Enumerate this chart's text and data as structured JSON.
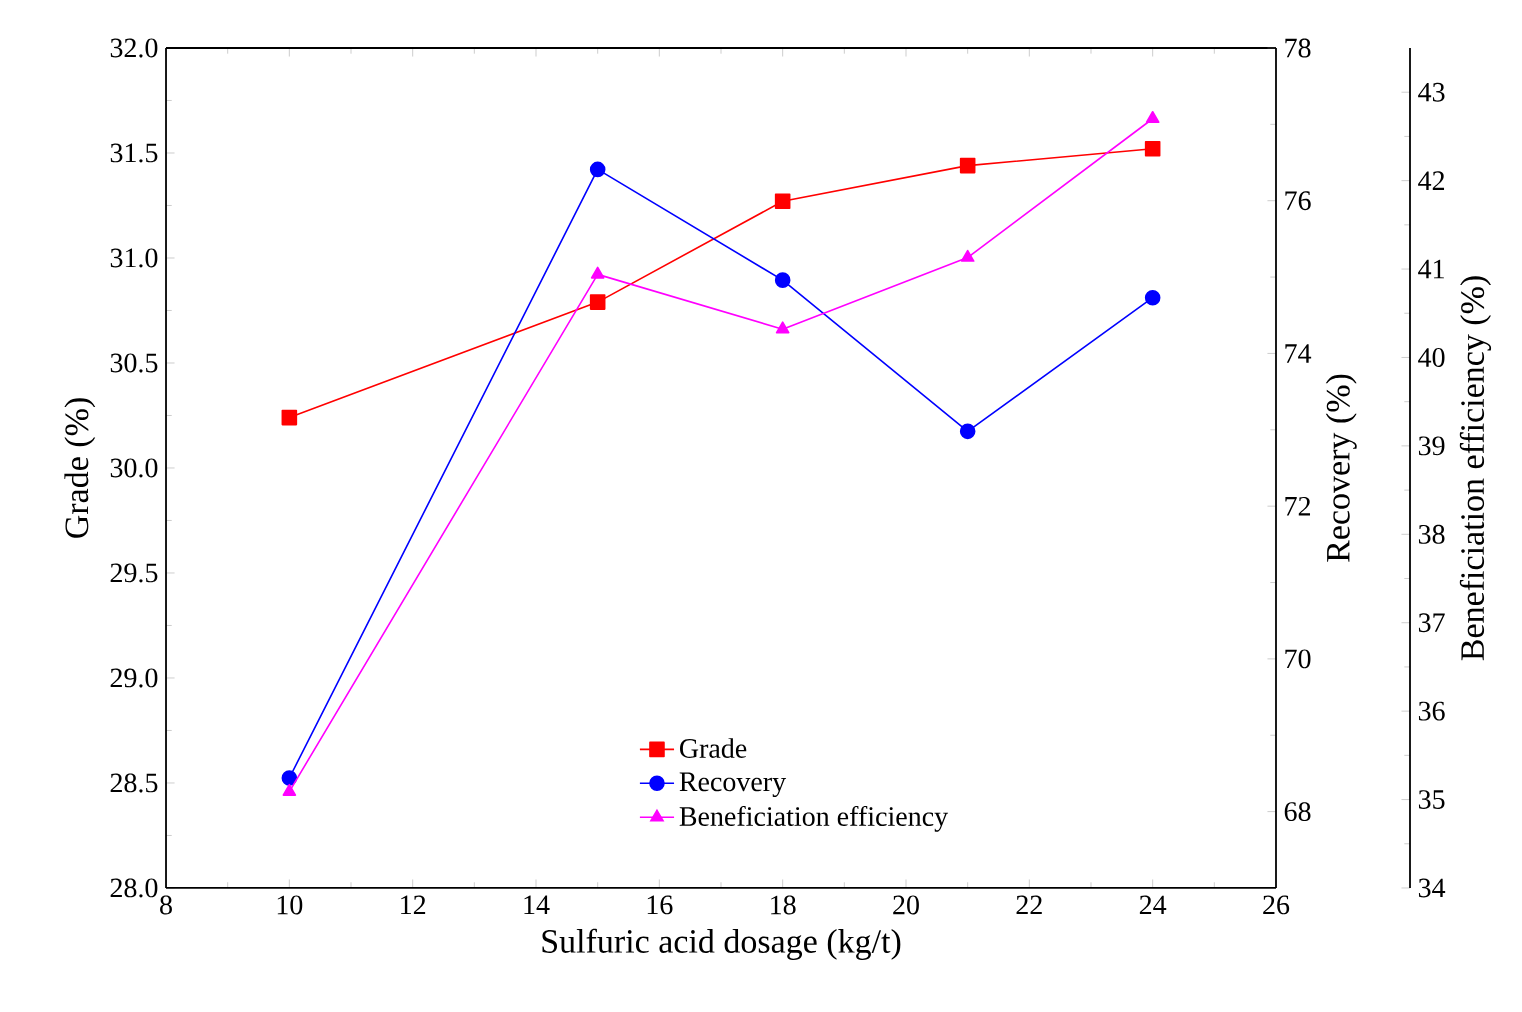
{
  "chart_data": {
    "type": "line",
    "xlabel": "Sulfuric acid dosage (kg/t)",
    "ylabel": "Grade (%)",
    "y2label": "Recovery (%)",
    "y3label": "Beneficiation efficiency (%)",
    "x": [
      10,
      15,
      18,
      21,
      24
    ],
    "series": [
      {
        "name": "Grade",
        "color": "#ff0000",
        "marker": "square",
        "values": [
          30.24,
          30.79,
          31.27,
          31.44,
          31.52
        ]
      },
      {
        "name": "Recovery",
        "color": "#0000ff",
        "marker": "circle",
        "axis": "y2",
        "values": [
          68.44,
          76.41,
          74.96,
          72.98,
          74.73
        ]
      },
      {
        "name": "Beneficiation efficiency",
        "color": "#ff00ff",
        "marker": "triangle",
        "axis": "y3",
        "values": [
          35.09,
          40.94,
          40.32,
          41.13,
          42.7
        ]
      }
    ],
    "xlim": [
      8,
      26
    ],
    "xticks": [
      8,
      10,
      12,
      14,
      16,
      18,
      20,
      22,
      24,
      26
    ],
    "ylim": [
      28,
      32
    ],
    "yticks": [
      {
        "value": 28,
        "label": "28.0"
      },
      {
        "value": 28.5,
        "label": "28.5"
      },
      {
        "value": 29,
        "label": "29.0"
      },
      {
        "value": 29.5,
        "label": "29.5"
      },
      {
        "value": 30,
        "label": "30.0"
      },
      {
        "value": 30.5,
        "label": "30.5"
      },
      {
        "value": 31,
        "label": "31.0"
      },
      {
        "value": 31.5,
        "label": "31.5"
      },
      {
        "value": 32,
        "label": "32.0"
      }
    ],
    "y2lim": [
      67,
      78
    ],
    "y2ticks": [
      68,
      70,
      72,
      74,
      76,
      78
    ],
    "y3lim": [
      34,
      43.5
    ],
    "y3ticks": [
      34,
      35,
      36,
      37,
      38,
      39,
      40,
      41,
      42,
      43
    ],
    "grid": false,
    "legend": "bottom",
    "line_style": "solid"
  }
}
